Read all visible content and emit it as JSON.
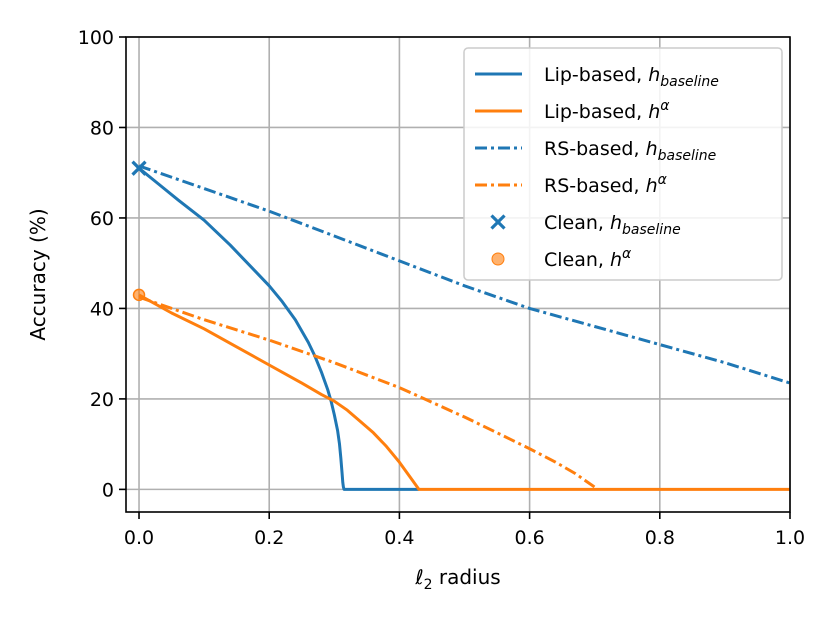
{
  "chart_data": {
    "type": "line",
    "title": "",
    "xlabel_main": "ℓ",
    "xlabel_sub": "2",
    "xlabel_rest": " radius",
    "ylabel": "Accuracy (%)",
    "xlim": [
      -0.02,
      1.0
    ],
    "ylim": [
      -5,
      100
    ],
    "xticks": [
      0.0,
      0.2,
      0.4,
      0.6,
      0.8,
      1.0
    ],
    "xtick_labels": [
      "0.0",
      "0.2",
      "0.4",
      "0.6",
      "0.8",
      "1.0"
    ],
    "yticks": [
      0,
      20,
      40,
      60,
      80,
      100
    ],
    "ytick_labels": [
      "0",
      "20",
      "40",
      "60",
      "80",
      "100"
    ],
    "grid": true,
    "legend_position": "top-right",
    "series": [
      {
        "name": "Lip-based, h_baseline",
        "label_main": "Lip-based, ",
        "label_sym": "h",
        "label_script": "baseline",
        "script_type": "sub",
        "color": "#1f77b4",
        "style": "solid",
        "x": [
          0.0,
          0.03,
          0.06,
          0.1,
          0.14,
          0.18,
          0.2,
          0.22,
          0.24,
          0.26,
          0.27,
          0.28,
          0.29,
          0.295,
          0.3,
          0.305,
          0.308,
          0.31,
          0.312,
          0.313,
          0.314,
          0.315,
          0.33,
          0.36,
          0.4,
          0.43
        ],
        "y": [
          71,
          67.5,
          64,
          59.5,
          54,
          48,
          45,
          41.5,
          37.5,
          32.5,
          29.5,
          26,
          22,
          19.5,
          16.5,
          13,
          10,
          7,
          3.5,
          1.5,
          0.5,
          0,
          0,
          0,
          0,
          0
        ]
      },
      {
        "name": "Lip-based, h^α",
        "label_main": "Lip-based, ",
        "label_sym": "h",
        "label_script": "α",
        "script_type": "sup",
        "color": "#ff7f0e",
        "style": "solid",
        "x": [
          0.0,
          0.05,
          0.1,
          0.15,
          0.2,
          0.25,
          0.28,
          0.3,
          0.32,
          0.34,
          0.36,
          0.38,
          0.4,
          0.41,
          0.42,
          0.425,
          0.43,
          0.45,
          0.5,
          0.6,
          0.7,
          0.8,
          0.9,
          1.0
        ],
        "y": [
          43,
          39,
          35.5,
          31.5,
          27.5,
          23.5,
          21,
          19.5,
          17.5,
          15,
          12.5,
          9.5,
          6,
          4,
          2,
          1,
          0,
          0,
          0,
          0,
          0,
          0,
          0,
          0
        ]
      },
      {
        "name": "RS-based, h_baseline",
        "label_main": "RS-based, ",
        "label_sym": "h",
        "label_script": "baseline",
        "script_type": "sub",
        "color": "#1f77b4",
        "style": "dashdot",
        "x": [
          0.0,
          0.1,
          0.2,
          0.3,
          0.4,
          0.5,
          0.6,
          0.7,
          0.8,
          0.9,
          1.0
        ],
        "y": [
          71.5,
          66.5,
          61.5,
          56,
          50.5,
          45,
          40,
          36,
          32,
          28,
          23.5
        ]
      },
      {
        "name": "RS-based, h^α",
        "label_main": "RS-based, ",
        "label_sym": "h",
        "label_script": "α",
        "script_type": "sup",
        "color": "#ff7f0e",
        "style": "dashdot",
        "x": [
          0.0,
          0.1,
          0.2,
          0.3,
          0.4,
          0.5,
          0.55,
          0.6,
          0.64,
          0.67,
          0.69,
          0.7,
          0.705
        ],
        "y": [
          42.5,
          37.5,
          33,
          28,
          22.5,
          16,
          12.5,
          9,
          6,
          3.5,
          1.5,
          0.5,
          0
        ]
      }
    ],
    "points": [
      {
        "name": "Clean, h_baseline",
        "label_main": "Clean, ",
        "label_sym": "h",
        "label_script": "baseline",
        "script_type": "sub",
        "color": "#1f77b4",
        "marker": "x",
        "x": 0.0,
        "y": 71
      },
      {
        "name": "Clean, h^α",
        "label_main": "Clean, ",
        "label_sym": "h",
        "label_script": "α",
        "script_type": "sup",
        "color": "#ff7f0e",
        "marker": "o",
        "x": 0.0,
        "y": 43
      }
    ]
  }
}
